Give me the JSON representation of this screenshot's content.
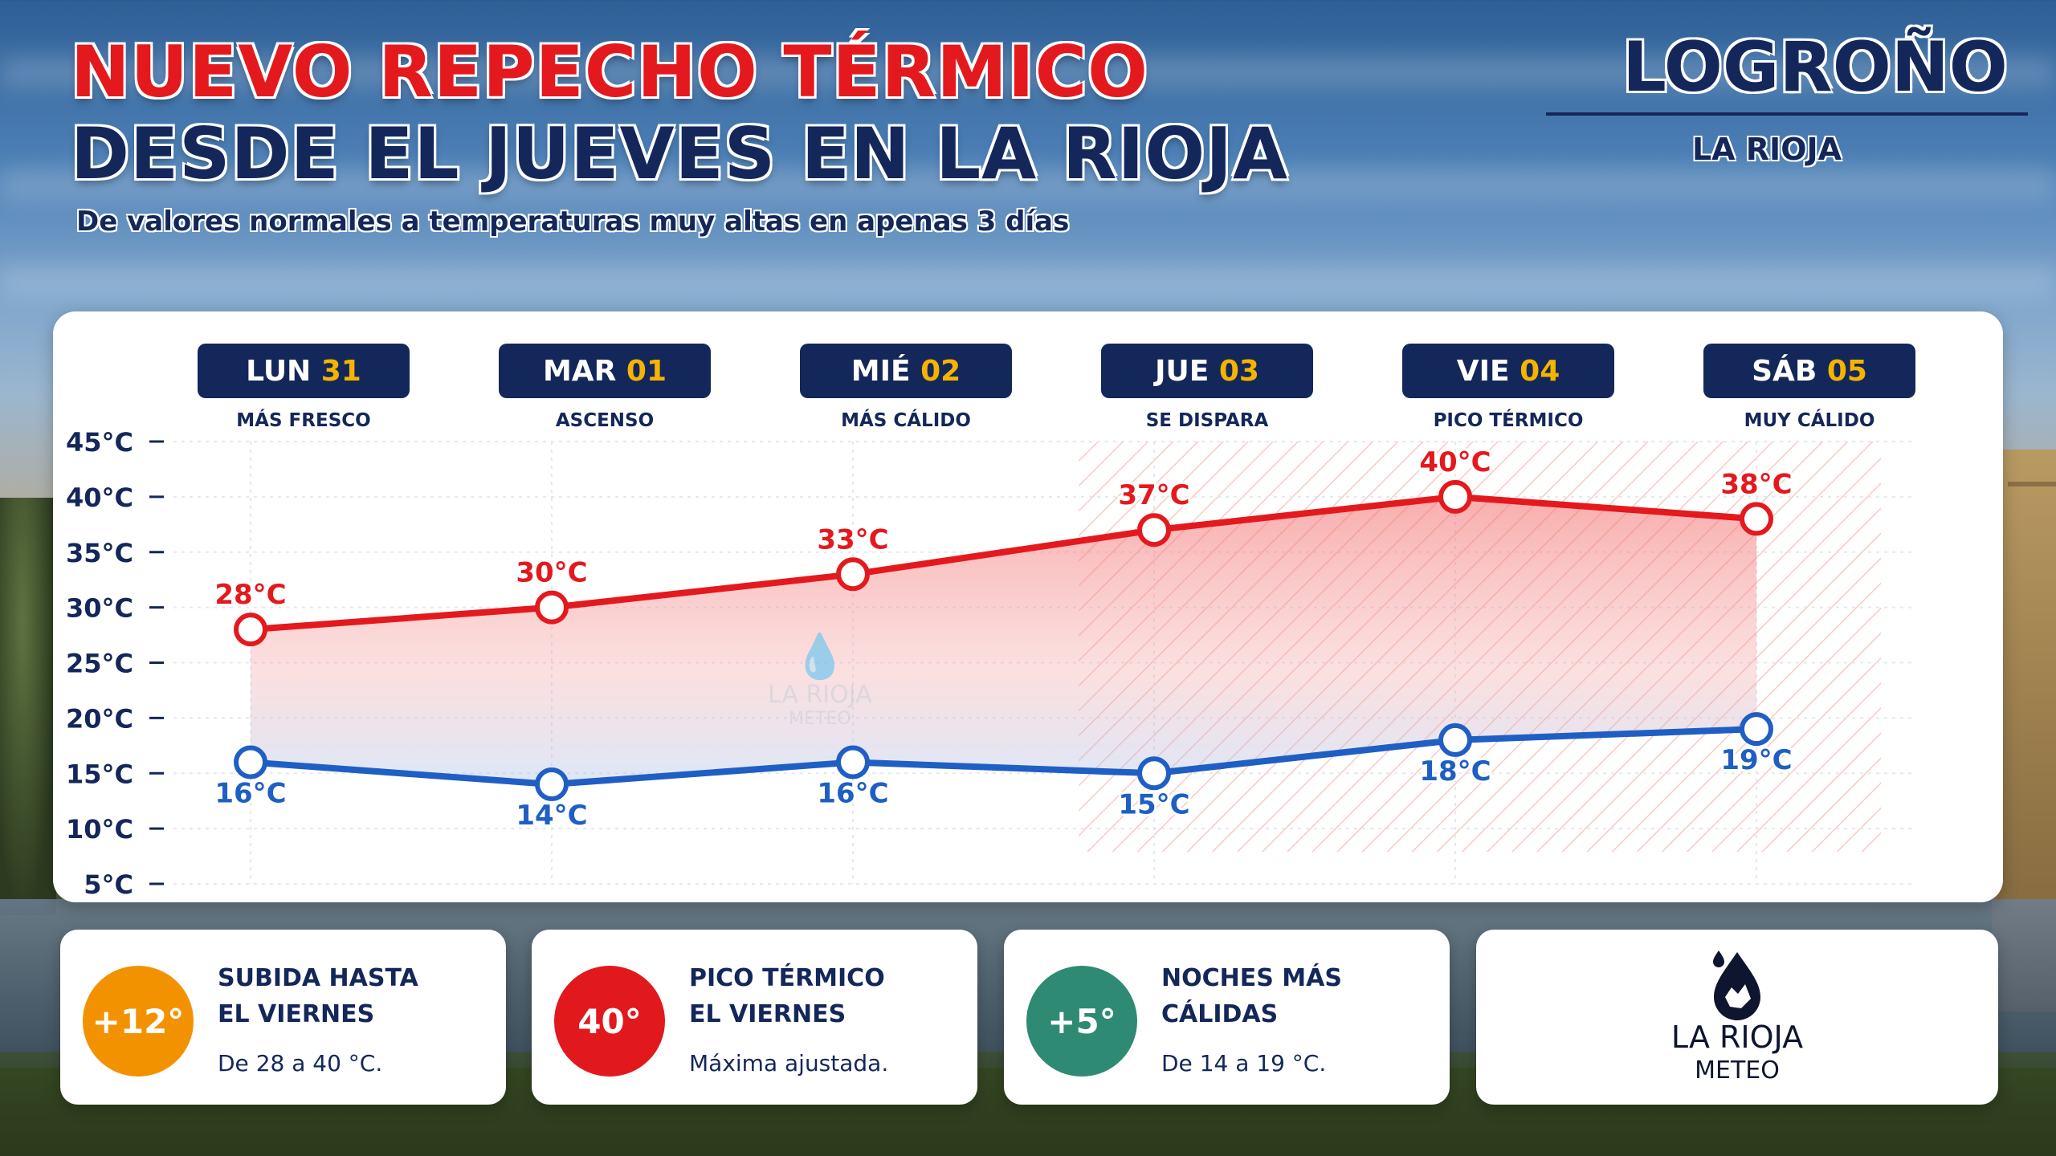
{
  "header": {
    "title_line1": "NUEVO REPECHO TÉRMICO",
    "title_line2": "DESDE EL JUEVES EN LA RIOJA",
    "subtitle": "De valores normales a temperaturas muy altas en apenas 3 días",
    "city": "LOGROÑO",
    "region": "LA RIOJA"
  },
  "chart_data": {
    "type": "line",
    "days": [
      {
        "name": "LUN",
        "num": "31",
        "note": "MÁS FRESCO"
      },
      {
        "name": "MAR",
        "num": "01",
        "note": "ASCENSO"
      },
      {
        "name": "MIÉ",
        "num": "02",
        "note": "MÁS CÁLIDO"
      },
      {
        "name": "JUE",
        "num": "03",
        "note": "SE DISPARA"
      },
      {
        "name": "VIE",
        "num": "04",
        "note": "PICO TÉRMICO"
      },
      {
        "name": "SÁB",
        "num": "05",
        "note": "MUY CÁLIDO"
      }
    ],
    "series": [
      {
        "key": "max",
        "color": "#e4191e",
        "values": [
          28,
          30,
          33,
          37,
          40,
          38
        ],
        "labels": [
          "28°C",
          "30°C",
          "33°C",
          "37°C",
          "40°C",
          "38°C"
        ]
      },
      {
        "key": "min",
        "color": "#1f5fc4",
        "values": [
          16,
          14,
          16,
          15,
          18,
          19
        ],
        "labels": [
          "16°C",
          "14°C",
          "16°C",
          "15°C",
          "18°C",
          "19°C"
        ]
      }
    ],
    "y_ticks": [
      45,
      40,
      35,
      30,
      25,
      20,
      15,
      10,
      5
    ],
    "y_tick_labels": [
      "45°C",
      "40°C",
      "35°C",
      "30°C",
      "25°C",
      "20°C",
      "15°C",
      "10°C",
      "5°C"
    ],
    "ylim": [
      5,
      45
    ],
    "highlight_from_day_index": 3,
    "grid": true,
    "colors": {
      "day_box": "#14275a",
      "day_num": "#f5b400",
      "max": "#e4191e",
      "min": "#1f5fc4",
      "text": "#14275a"
    }
  },
  "watermark": {
    "line1": "LA RIOJA",
    "line2": "METEO"
  },
  "cards": [
    {
      "badge": "+12°",
      "color": "#f39200",
      "title_line1": "SUBIDA HASTA",
      "title_line2": "EL VIERNES",
      "desc": "De 28 a 40 °C."
    },
    {
      "badge": "40°",
      "color": "#e1191d",
      "title_line1": "PICO TÉRMICO",
      "title_line2": "EL VIERNES",
      "desc": "Máxima ajustada."
    },
    {
      "badge": "+5°",
      "color": "#2e8a72",
      "title_line1": "NOCHES MÁS",
      "title_line2": "CÁLIDAS",
      "desc": "De 14 a 19 °C."
    }
  ],
  "logo": {
    "line1": "LA RIOJA",
    "line2": "METEO",
    "icon": "water-drop-icon"
  }
}
